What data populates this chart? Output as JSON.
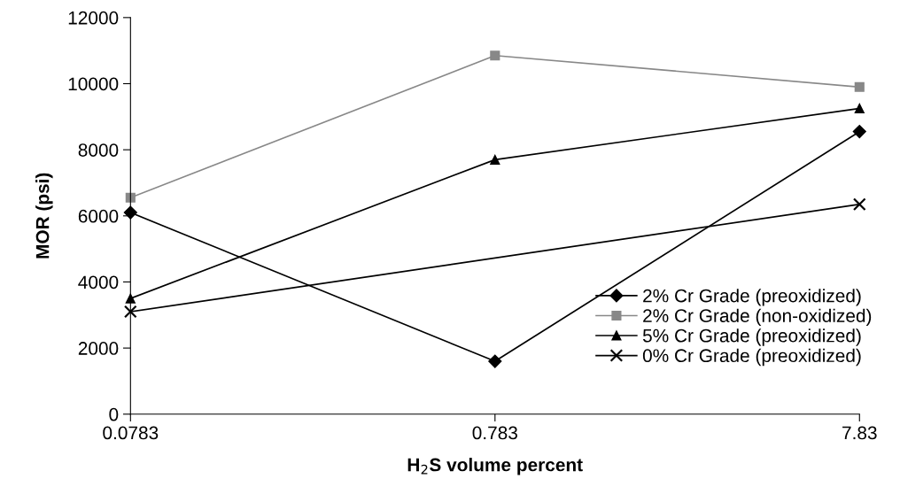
{
  "chart_data": {
    "type": "line",
    "xlabel": "H$_{2}$S volume percent",
    "ylabel": "MOR (psi)",
    "x": [
      0.0783,
      0.783,
      7.83
    ],
    "log": "x",
    "series": [
      {
        "name": "2% Cr Grade (preoxidized)",
        "color": "#000000",
        "marker": "diamond",
        "values": [
          6100,
          1600,
          8550
        ]
      },
      {
        "name": "2% Cr Grade (non-oxidized)",
        "color": "#888888",
        "marker": "square",
        "values": [
          6550,
          10850,
          9900
        ]
      },
      {
        "name": "5% Cr Grade (preoxidized)",
        "color": "#000000",
        "marker": "triangle",
        "values": [
          3500,
          7700,
          9250
        ]
      },
      {
        "name": "0% Cr Grade (preoxidized)",
        "color": "#000000",
        "marker": "cross",
        "values": [
          3100,
          null,
          6350
        ]
      }
    ],
    "xlim": [
      0.0783,
      7.83
    ],
    "xticks": [
      0.0783,
      0.783,
      7.83
    ],
    "ylim": [
      0,
      12000
    ],
    "yticks": [
      0,
      2000,
      4000,
      6000,
      8000,
      10000,
      12000
    ],
    "grid": false,
    "legend": "right"
  }
}
